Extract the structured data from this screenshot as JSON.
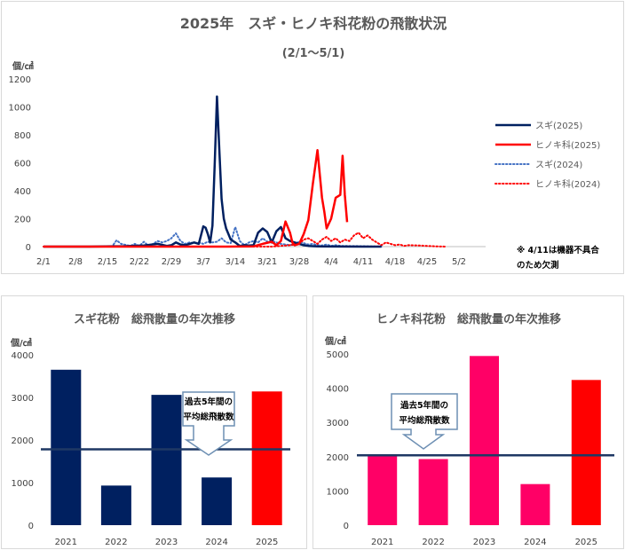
{
  "colors": {
    "sugi": "#002060",
    "hinoki": "#ff0000",
    "hinoki_bar": "#ff0066",
    "average_line": "#1f3864",
    "callout_border": "#6d8fb3"
  },
  "chart_data": [
    {
      "type": "line",
      "title": "2025年　スギ・ヒノキ科花粉の飛散状況",
      "subtitle": "(2/1〜5/1)",
      "ylabel": "個/㎠",
      "ylim": [
        0,
        1200
      ],
      "yticks": [
        "0",
        "200",
        "400",
        "600",
        "800",
        "1000",
        "1200"
      ],
      "x_tick_labels": [
        "2/1",
        "2/8",
        "2/15",
        "2/22",
        "2/29",
        "3/7",
        "3/14",
        "3/21",
        "3/28",
        "4/4",
        "4/11",
        "4/18",
        "4/25",
        "5/2"
      ],
      "legend_position": "right",
      "note": [
        "※ 4/11は機器不具合",
        "のため欠測"
      ],
      "series": [
        {
          "name": "スギ(2025)",
          "style": "solid",
          "color": "#002060",
          "points": [
            [
              0,
              0
            ],
            [
              10,
              0
            ],
            [
              18,
              3
            ],
            [
              22,
              8
            ],
            [
              25,
              20
            ],
            [
              27,
              5
            ],
            [
              28,
              10
            ],
            [
              29,
              30
            ],
            [
              30,
              15
            ],
            [
              31,
              10
            ],
            [
              32,
              20
            ],
            [
              33,
              30
            ],
            [
              34,
              20
            ],
            [
              35,
              145
            ],
            [
              35.5,
              135
            ],
            [
              36,
              90
            ],
            [
              36.5,
              30
            ],
            [
              37,
              150
            ],
            [
              37.5,
              600
            ],
            [
              38,
              1075
            ],
            [
              38.5,
              700
            ],
            [
              39,
              340
            ],
            [
              39.5,
              200
            ],
            [
              40,
              130
            ],
            [
              41,
              50
            ],
            [
              42,
              30
            ],
            [
              43,
              5
            ],
            [
              44,
              10
            ],
            [
              45,
              8
            ],
            [
              46,
              10
            ],
            [
              47,
              100
            ],
            [
              48,
              130
            ],
            [
              49,
              105
            ],
            [
              50,
              30
            ],
            [
              51,
              110
            ],
            [
              52,
              140
            ],
            [
              53,
              60
            ],
            [
              54,
              40
            ],
            [
              55,
              30
            ],
            [
              56,
              20
            ],
            [
              57,
              10
            ],
            [
              58,
              5
            ],
            [
              60,
              2
            ],
            [
              70,
              0
            ],
            [
              74,
              0
            ]
          ]
        },
        {
          "name": "ヒノキ科(2025)",
          "style": "solid",
          "color": "#ff0000",
          "points": [
            [
              0,
              0
            ],
            [
              40,
              0
            ],
            [
              46,
              2
            ],
            [
              48,
              20
            ],
            [
              50,
              35
            ],
            [
              51,
              10
            ],
            [
              52,
              40
            ],
            [
              53,
              180
            ],
            [
              54,
              100
            ],
            [
              54.5,
              30
            ],
            [
              55,
              10
            ],
            [
              56,
              20
            ],
            [
              57,
              90
            ],
            [
              58,
              190
            ],
            [
              59,
              450
            ],
            [
              60,
              690
            ],
            [
              61,
              350
            ],
            [
              61.5,
              250
            ],
            [
              62,
              130
            ],
            [
              63,
              200
            ],
            [
              64,
              350
            ],
            [
              65,
              370
            ],
            [
              65.5,
              650
            ],
            [
              66,
              370
            ],
            [
              66.5,
              175
            ]
          ]
        },
        {
          "name": "スギ(2024)",
          "style": "dotted",
          "color": "#4472c4",
          "points": [
            [
              0,
              0
            ],
            [
              15,
              0
            ],
            [
              16,
              45
            ],
            [
              17,
              20
            ],
            [
              19,
              5
            ],
            [
              20,
              20
            ],
            [
              21,
              5
            ],
            [
              22,
              35
            ],
            [
              23,
              5
            ],
            [
              24,
              20
            ],
            [
              25,
              40
            ],
            [
              26,
              30
            ],
            [
              27,
              40
            ],
            [
              28,
              60
            ],
            [
              29,
              95
            ],
            [
              30,
              40
            ],
            [
              31,
              20
            ],
            [
              32,
              30
            ],
            [
              33,
              25
            ],
            [
              34,
              30
            ],
            [
              35,
              20
            ],
            [
              36,
              35
            ],
            [
              37,
              30
            ],
            [
              38,
              35
            ],
            [
              39,
              60
            ],
            [
              40,
              30
            ],
            [
              41,
              25
            ],
            [
              42,
              140
            ],
            [
              43,
              40
            ],
            [
              44,
              10
            ],
            [
              45,
              30
            ],
            [
              46,
              40
            ],
            [
              47,
              30
            ],
            [
              48,
              60
            ],
            [
              49,
              35
            ],
            [
              50,
              40
            ],
            [
              51,
              30
            ],
            [
              52,
              20
            ],
            [
              53,
              15
            ],
            [
              54,
              10
            ],
            [
              55,
              20
            ],
            [
              56,
              35
            ],
            [
              57,
              25
            ],
            [
              58,
              15
            ],
            [
              59,
              20
            ],
            [
              60,
              10
            ],
            [
              61,
              8
            ],
            [
              62,
              15
            ],
            [
              63,
              5
            ],
            [
              64,
              10
            ],
            [
              65,
              5
            ],
            [
              70,
              3
            ],
            [
              74,
              0
            ]
          ]
        },
        {
          "name": "ヒノキ科(2024)",
          "style": "dotted",
          "color": "#ff0000",
          "points": [
            [
              0,
              0
            ],
            [
              50,
              0
            ],
            [
              52,
              5
            ],
            [
              54,
              10
            ],
            [
              56,
              20
            ],
            [
              57,
              50
            ],
            [
              58,
              60
            ],
            [
              59,
              40
            ],
            [
              60,
              20
            ],
            [
              61,
              50
            ],
            [
              62,
              70
            ],
            [
              63,
              40
            ],
            [
              64,
              60
            ],
            [
              65,
              30
            ],
            [
              66,
              50
            ],
            [
              67,
              40
            ],
            [
              68,
              80
            ],
            [
              69,
              100
            ],
            [
              70,
              60
            ],
            [
              71,
              80
            ],
            [
              72,
              50
            ],
            [
              73,
              30
            ],
            [
              74,
              10
            ],
            [
              75,
              30
            ],
            [
              76,
              20
            ],
            [
              77,
              10
            ],
            [
              78,
              15
            ],
            [
              79,
              5
            ],
            [
              80,
              10
            ],
            [
              82,
              8
            ],
            [
              84,
              5
            ],
            [
              86,
              2
            ],
            [
              88,
              0
            ]
          ]
        }
      ]
    },
    {
      "type": "bar",
      "title": "スギ花粉　総飛散量の年次推移",
      "ylabel": "個/㎠",
      "ylim": [
        0,
        4000
      ],
      "yticks": [
        "0",
        "1000",
        "2000",
        "3000",
        "4000"
      ],
      "categories": [
        "2021",
        "2022",
        "2023",
        "2024",
        "2025"
      ],
      "values": [
        3650,
        930,
        3060,
        1120,
        3140
      ],
      "bar_colors": [
        "#002060",
        "#002060",
        "#002060",
        "#002060",
        "#ff0000"
      ],
      "average_value": 1780,
      "callout": [
        "過去5年間の",
        "平均総飛散数"
      ]
    },
    {
      "type": "bar",
      "title": "ヒノキ科花粉　総飛散量の年次推移",
      "ylabel": "個/㎠",
      "ylim": [
        0,
        5000
      ],
      "yticks": [
        "0",
        "1000",
        "2000",
        "3000",
        "4000",
        "5000"
      ],
      "categories": [
        "2021",
        "2022",
        "2023",
        "2024",
        "2025"
      ],
      "values": [
        2010,
        1930,
        4940,
        1200,
        4240
      ],
      "bar_colors": [
        "#ff0066",
        "#ff0066",
        "#ff0066",
        "#ff0066",
        "#ff0000"
      ],
      "average_value": 2040,
      "callout": [
        "過去5年間の",
        "平均総飛散数"
      ]
    }
  ]
}
